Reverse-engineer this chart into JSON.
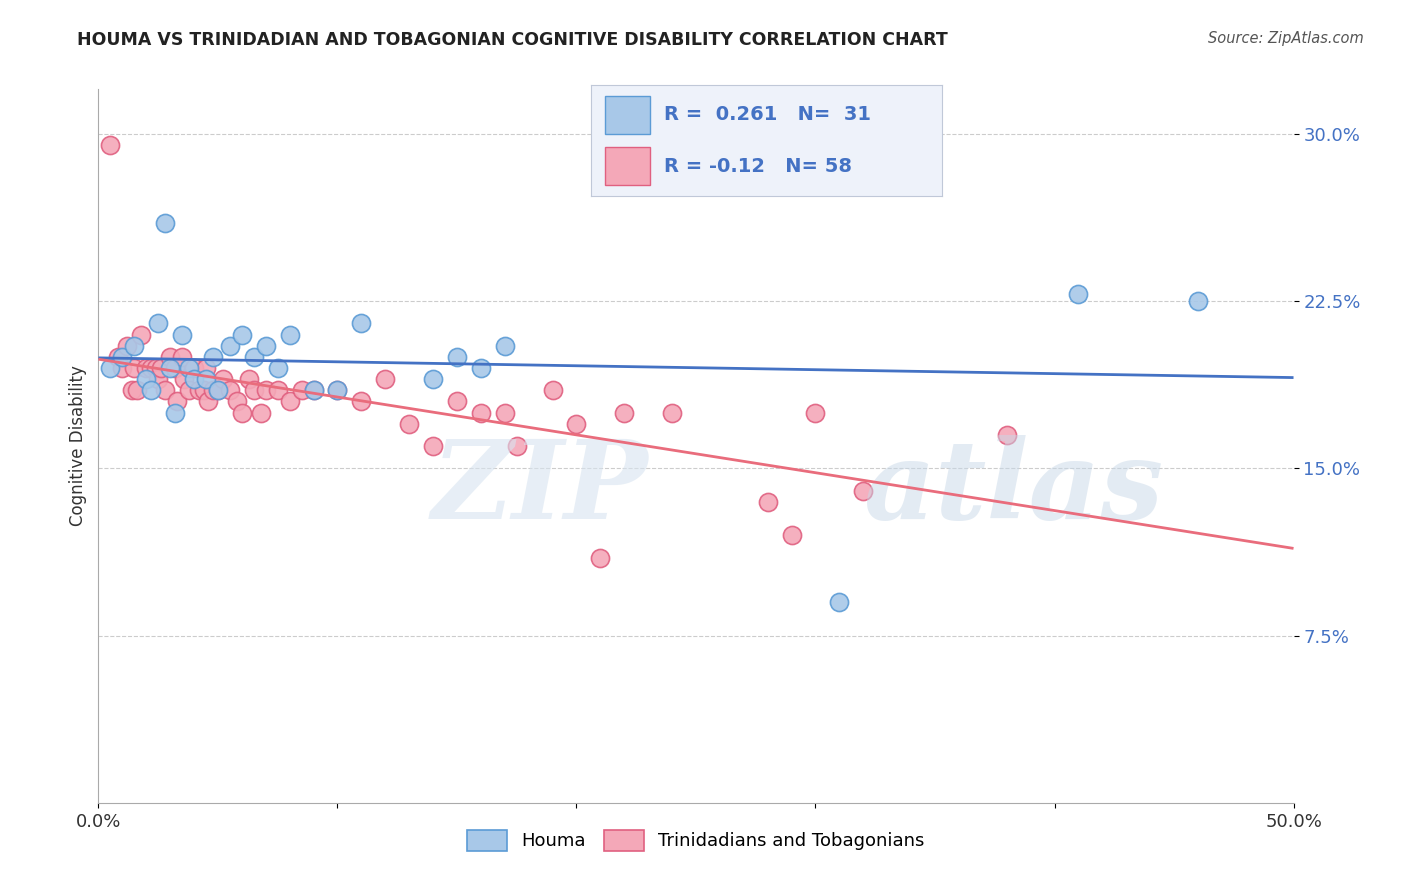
{
  "title": "HOUMA VS TRINIDADIAN AND TOBAGONIAN COGNITIVE DISABILITY CORRELATION CHART",
  "source": "Source: ZipAtlas.com",
  "ylabel": "Cognitive Disability",
  "watermark_zip": "ZIP",
  "watermark_atlas": "atlas",
  "xlim": [
    0.0,
    0.5
  ],
  "ylim": [
    0.0,
    0.32
  ],
  "yticks": [
    0.075,
    0.15,
    0.225,
    0.3
  ],
  "ytick_labels": [
    "7.5%",
    "15.0%",
    "22.5%",
    "30.0%"
  ],
  "xticks": [
    0.0,
    0.1,
    0.2,
    0.3,
    0.4,
    0.5
  ],
  "xtick_labels": [
    "0.0%",
    "",
    "",
    "",
    "",
    "50.0%"
  ],
  "houma_R": 0.261,
  "houma_N": 31,
  "trini_R": -0.12,
  "trini_N": 58,
  "houma_color": "#a8c8e8",
  "trini_color": "#f4a8b8",
  "houma_edge_color": "#5b9bd5",
  "trini_edge_color": "#e06080",
  "houma_line_color": "#4472C4",
  "trini_line_color": "#E96C7C",
  "legend_box_color": "#EEF2FA",
  "legend_border_color": "#c0c8d8",
  "background_color": "#ffffff",
  "houma_x": [
    0.005,
    0.01,
    0.015,
    0.02,
    0.022,
    0.025,
    0.028,
    0.03,
    0.032,
    0.035,
    0.038,
    0.04,
    0.045,
    0.048,
    0.05,
    0.055,
    0.06,
    0.065,
    0.07,
    0.075,
    0.08,
    0.09,
    0.1,
    0.11,
    0.14,
    0.15,
    0.16,
    0.17,
    0.31,
    0.41,
    0.46
  ],
  "houma_y": [
    0.195,
    0.2,
    0.205,
    0.19,
    0.185,
    0.215,
    0.26,
    0.195,
    0.175,
    0.21,
    0.195,
    0.19,
    0.19,
    0.2,
    0.185,
    0.205,
    0.21,
    0.2,
    0.205,
    0.195,
    0.21,
    0.185,
    0.185,
    0.215,
    0.19,
    0.2,
    0.195,
    0.205,
    0.09,
    0.228,
    0.225
  ],
  "trini_x": [
    0.005,
    0.008,
    0.01,
    0.012,
    0.014,
    0.015,
    0.016,
    0.018,
    0.02,
    0.022,
    0.024,
    0.025,
    0.026,
    0.028,
    0.03,
    0.032,
    0.033,
    0.035,
    0.036,
    0.038,
    0.04,
    0.042,
    0.044,
    0.045,
    0.046,
    0.048,
    0.05,
    0.052,
    0.055,
    0.058,
    0.06,
    0.063,
    0.065,
    0.068,
    0.07,
    0.075,
    0.08,
    0.085,
    0.09,
    0.1,
    0.11,
    0.12,
    0.13,
    0.14,
    0.15,
    0.16,
    0.17,
    0.175,
    0.19,
    0.2,
    0.21,
    0.22,
    0.24,
    0.28,
    0.29,
    0.3,
    0.32,
    0.38
  ],
  "trini_y": [
    0.295,
    0.2,
    0.195,
    0.205,
    0.185,
    0.195,
    0.185,
    0.21,
    0.195,
    0.195,
    0.195,
    0.19,
    0.195,
    0.185,
    0.2,
    0.195,
    0.18,
    0.2,
    0.19,
    0.185,
    0.195,
    0.185,
    0.185,
    0.195,
    0.18,
    0.185,
    0.185,
    0.19,
    0.185,
    0.18,
    0.175,
    0.19,
    0.185,
    0.175,
    0.185,
    0.185,
    0.18,
    0.185,
    0.185,
    0.185,
    0.18,
    0.19,
    0.17,
    0.16,
    0.18,
    0.175,
    0.175,
    0.16,
    0.185,
    0.17,
    0.11,
    0.175,
    0.175,
    0.135,
    0.12,
    0.175,
    0.14,
    0.165
  ]
}
